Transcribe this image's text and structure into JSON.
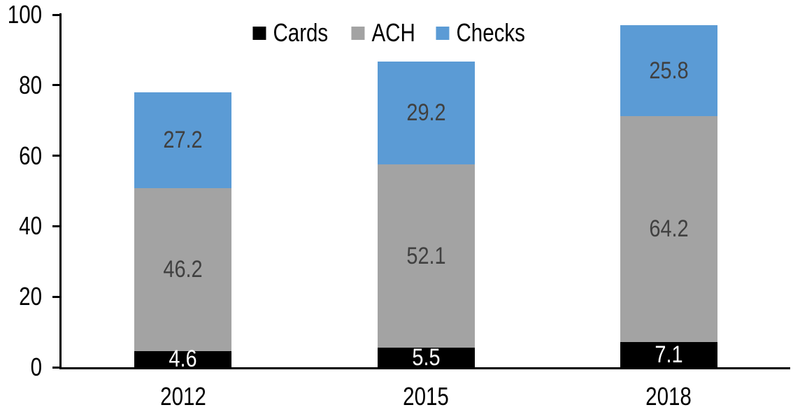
{
  "chart_data": {
    "type": "bar",
    "stacked": true,
    "title": "",
    "xlabel": "",
    "ylabel": "",
    "categories": [
      "2012",
      "2015",
      "2018"
    ],
    "series": [
      {
        "name": "Cards",
        "color": "#000000",
        "label_color": "#ffffff",
        "values": [
          4.6,
          5.5,
          7.1
        ]
      },
      {
        "name": "ACH",
        "color": "#a3a3a3",
        "label_color": "#404040",
        "values": [
          46.2,
          52.1,
          64.2
        ]
      },
      {
        "name": "Checks",
        "color": "#5b9bd5",
        "label_color": "#404040",
        "values": [
          27.2,
          29.2,
          25.8
        ]
      }
    ],
    "totals": [
      78.0,
      86.8,
      97.1
    ],
    "ylim": [
      0,
      100
    ],
    "yticks": [
      0,
      20,
      40,
      60,
      80,
      100
    ],
    "grid": false,
    "legend_position": "top",
    "axis_color": "#000000",
    "tick_label_color": "#000000"
  }
}
